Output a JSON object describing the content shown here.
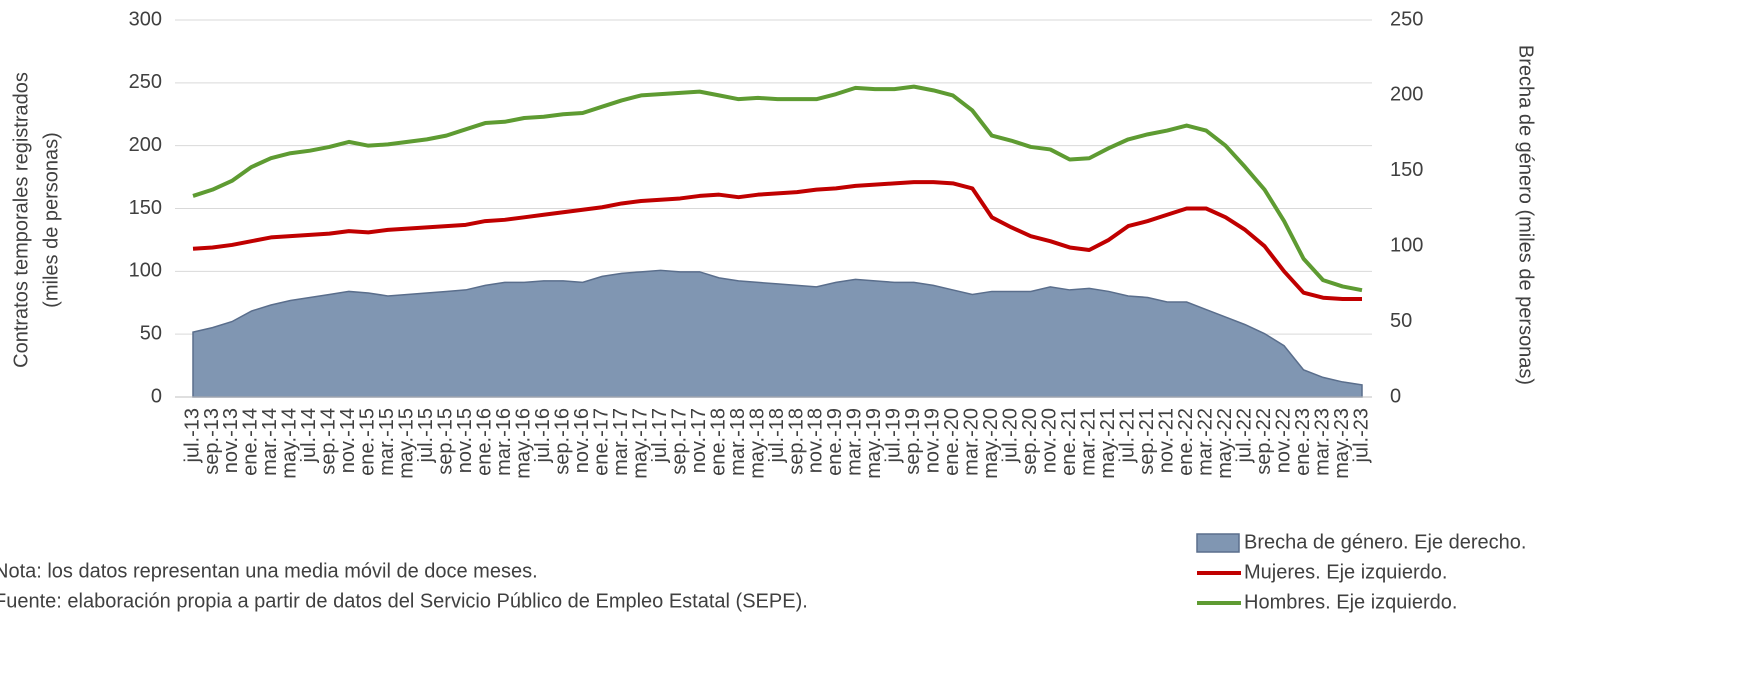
{
  "chart_data": {
    "type": "line",
    "ylabel": [
      "Contratos temporales registrados",
      "(miles de personas)"
    ],
    "y2label": "Brecha de género (miles de personas)",
    "categories": [
      "jul.-13",
      "sep.-13",
      "nov.-13",
      "ene.-14",
      "mar.-14",
      "may.-14",
      "jul.-14",
      "sep.-14",
      "nov.-14",
      "ene.-15",
      "mar.-15",
      "may.-15",
      "jul.-15",
      "sep.-15",
      "nov.-15",
      "ene.-16",
      "mar.-16",
      "may.-16",
      "jul.-16",
      "sep.-16",
      "nov.-16",
      "ene.-17",
      "mar.-17",
      "may.-17",
      "jul.-17",
      "sep.-17",
      "nov.-17",
      "ene.-18",
      "mar.-18",
      "may.-18",
      "jul.-18",
      "sep.-18",
      "nov.-18",
      "ene.-19",
      "mar.-19",
      "may.-19",
      "jul.-19",
      "sep.-19",
      "nov.-19",
      "ene.-20",
      "mar.-20",
      "may.-20",
      "jul.-20",
      "sep.-20",
      "nov.-20",
      "ene.-21",
      "mar.-21",
      "may.-21",
      "jul.-21",
      "sep.-21",
      "nov.-21",
      "ene.-22",
      "mar.-22",
      "may.-22",
      "jul.-22",
      "sep.-22",
      "nov.-22",
      "ene.-23",
      "mar.-23",
      "may.-23",
      "jul.-23"
    ],
    "series": [
      {
        "name": "Brecha de género. Eje derecho.",
        "kind": "area",
        "axis": "y2",
        "color": "#8096b2",
        "edge": "#5a6e8c",
        "values": [
          43,
          46,
          50,
          57,
          61,
          64,
          66,
          68,
          70,
          69,
          67,
          68,
          69,
          70,
          71,
          74,
          76,
          76,
          77,
          77,
          76,
          80,
          82,
          83,
          84,
          83,
          83,
          79,
          77,
          76,
          75,
          74,
          73,
          76,
          78,
          77,
          76,
          76,
          74,
          71,
          68,
          70,
          70,
          70,
          73,
          71,
          72,
          70,
          67,
          66,
          63,
          63,
          58,
          53,
          48,
          42,
          34,
          18,
          13,
          10,
          8
        ]
      },
      {
        "name": "Mujeres. Eje izquierdo.",
        "kind": "line",
        "color": "#c00000",
        "values": [
          118,
          119,
          121,
          124,
          127,
          128,
          129,
          130,
          132,
          131,
          133,
          134,
          135,
          136,
          137,
          140,
          141,
          143,
          145,
          147,
          149,
          151,
          154,
          156,
          157,
          158,
          160,
          161,
          159,
          161,
          162,
          163,
          165,
          166,
          168,
          169,
          170,
          171,
          171,
          170,
          166,
          143,
          135,
          128,
          124,
          119,
          117,
          125,
          136,
          140,
          145,
          150,
          150,
          143,
          133,
          120,
          100,
          83,
          79,
          78,
          78
        ]
      },
      {
        "name": "Hombres. Eje izquierdo.",
        "kind": "line",
        "color": "#5e9b32",
        "values": [
          160,
          165,
          172,
          183,
          190,
          194,
          196,
          199,
          203,
          200,
          201,
          203,
          205,
          208,
          213,
          218,
          219,
          222,
          223,
          225,
          226,
          231,
          236,
          240,
          241,
          242,
          243,
          240,
          237,
          238,
          237,
          237,
          237,
          241,
          246,
          245,
          245,
          247,
          244,
          240,
          228,
          208,
          204,
          199,
          197,
          189,
          190,
          198,
          205,
          209,
          212,
          216,
          212,
          200,
          183,
          165,
          140,
          110,
          93,
          88,
          85
        ]
      }
    ],
    "ylim": [
      0,
      300
    ],
    "yticks": [
      0,
      50,
      100,
      150,
      200,
      250,
      300
    ],
    "y2lim": [
      0,
      250
    ],
    "y2ticks": [
      0,
      50,
      100,
      150,
      200,
      250
    ],
    "grid": true,
    "legend": "bottom-right",
    "notes": [
      "Nota: los datos representan una media móvil de doce meses.",
      "Fuente: elaboración propia a partir de datos del Servicio Público de Empleo Estatal (SEPE)."
    ]
  }
}
